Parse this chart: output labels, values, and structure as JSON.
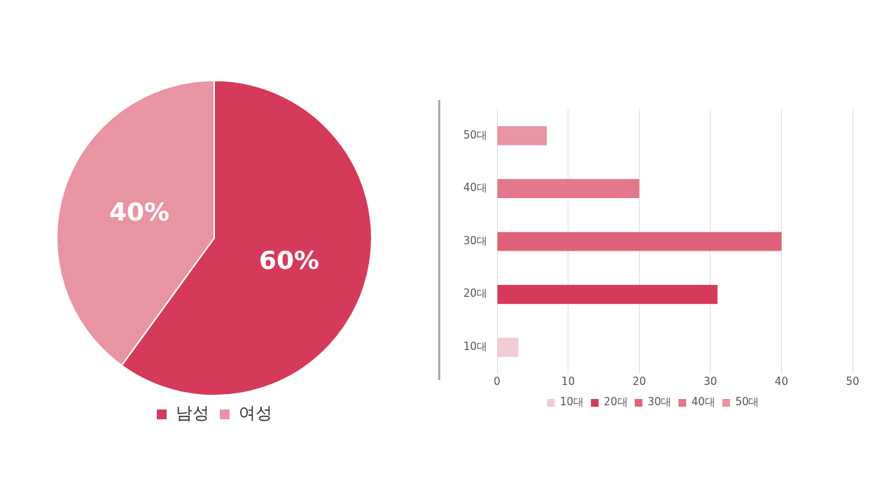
{
  "chart_data": [
    {
      "type": "pie",
      "categories": [
        "남성",
        "여성"
      ],
      "values": [
        60,
        40
      ],
      "colors": [
        "#d63a5a",
        "#e994a3"
      ],
      "value_labels": [
        "60%",
        "40%"
      ],
      "legend": "bottom"
    },
    {
      "type": "bar",
      "orientation": "horizontal",
      "stacked": true,
      "categories": [
        "50대",
        "40대",
        "30대",
        "20대",
        "10대"
      ],
      "series": [
        {
          "name": "10대",
          "color": "#f2cbd3",
          "values": [
            null,
            null,
            null,
            null,
            3
          ]
        },
        {
          "name": "20대",
          "color": "#d63a5a",
          "values": [
            null,
            null,
            null,
            31,
            null
          ]
        },
        {
          "name": "30대",
          "color": "#e0627a",
          "values": [
            null,
            null,
            40,
            null,
            null
          ]
        },
        {
          "name": "40대",
          "color": "#e4778b",
          "values": [
            null,
            20,
            null,
            null,
            null
          ]
        },
        {
          "name": "50대",
          "color": "#e994a3",
          "values": [
            7,
            null,
            null,
            null,
            null
          ]
        }
      ],
      "xlim": [
        0,
        50
      ],
      "xticks": [
        0,
        10,
        20,
        30,
        40,
        50
      ],
      "grid": "x",
      "legend": "bottom"
    }
  ]
}
